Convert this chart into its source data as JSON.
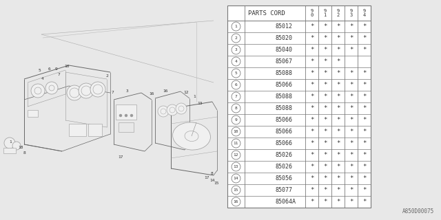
{
  "title": "A850D00075",
  "bg_color": "#e8e8e8",
  "table_bg": "#ffffff",
  "table": {
    "header_label": "PARTS CORD",
    "year_cols": [
      "9\n0",
      "9\n1",
      "9\n2",
      "9\n3",
      "9\n4"
    ],
    "rows": [
      {
        "num": 1,
        "part": "85012",
        "marks": [
          1,
          1,
          1,
          1,
          1
        ]
      },
      {
        "num": 2,
        "part": "85020",
        "marks": [
          1,
          1,
          1,
          1,
          1
        ]
      },
      {
        "num": 3,
        "part": "85040",
        "marks": [
          1,
          1,
          1,
          1,
          1
        ]
      },
      {
        "num": 4,
        "part": "85067",
        "marks": [
          1,
          1,
          1,
          0,
          0
        ]
      },
      {
        "num": 5,
        "part": "85088",
        "marks": [
          1,
          1,
          1,
          1,
          1
        ]
      },
      {
        "num": 6,
        "part": "85066",
        "marks": [
          1,
          1,
          1,
          1,
          1
        ]
      },
      {
        "num": 7,
        "part": "85088",
        "marks": [
          1,
          1,
          1,
          1,
          1
        ]
      },
      {
        "num": 8,
        "part": "85088",
        "marks": [
          1,
          1,
          1,
          1,
          1
        ]
      },
      {
        "num": 9,
        "part": "85066",
        "marks": [
          1,
          1,
          1,
          1,
          1
        ]
      },
      {
        "num": 10,
        "part": "85066",
        "marks": [
          1,
          1,
          1,
          1,
          1
        ]
      },
      {
        "num": 11,
        "part": "85066",
        "marks": [
          1,
          1,
          1,
          1,
          1
        ]
      },
      {
        "num": 12,
        "part": "85026",
        "marks": [
          1,
          1,
          1,
          1,
          1
        ]
      },
      {
        "num": 13,
        "part": "85026",
        "marks": [
          1,
          1,
          1,
          1,
          1
        ]
      },
      {
        "num": 14,
        "part": "85056",
        "marks": [
          1,
          1,
          1,
          1,
          1
        ]
      },
      {
        "num": 15,
        "part": "85077",
        "marks": [
          1,
          1,
          1,
          1,
          1
        ]
      },
      {
        "num": 16,
        "part": "85064A",
        "marks": [
          1,
          1,
          1,
          1,
          1
        ]
      }
    ]
  },
  "line_color": "#888888",
  "dark_line": "#555555",
  "text_color": "#444444",
  "mark_symbol": "*",
  "diagram_label_color": "#333333",
  "diagram_line_color": "#999999",
  "diagram_dark_line": "#666666"
}
